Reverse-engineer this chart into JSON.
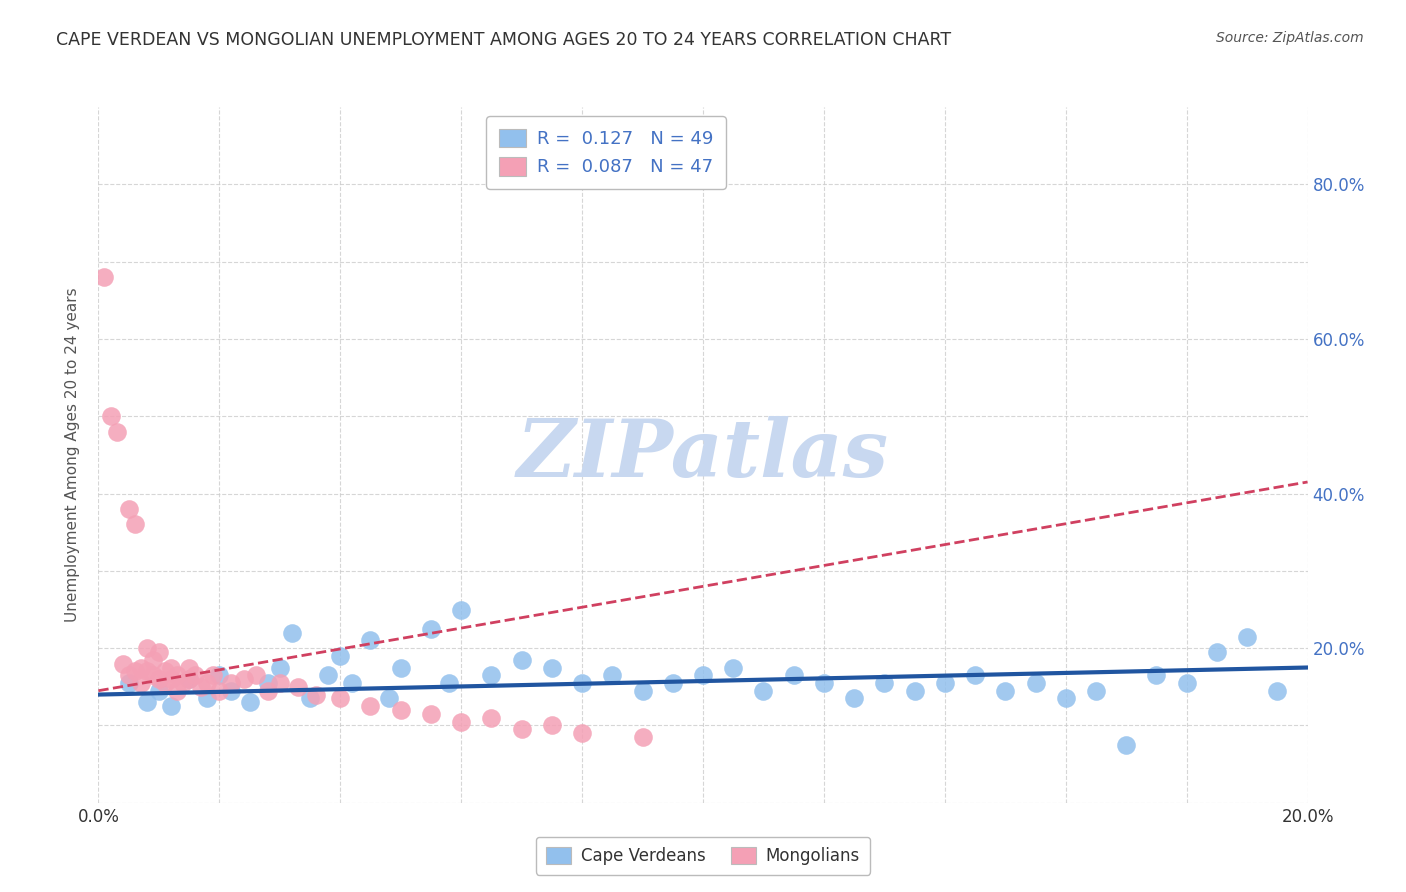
{
  "title": "CAPE VERDEAN VS MONGOLIAN UNEMPLOYMENT AMONG AGES 20 TO 24 YEARS CORRELATION CHART",
  "source": "Source: ZipAtlas.com",
  "ylabel": "Unemployment Among Ages 20 to 24 years",
  "xlim": [
    0.0,
    0.2
  ],
  "ylim": [
    0.0,
    0.9
  ],
  "xticks": [
    0.0,
    0.02,
    0.04,
    0.06,
    0.08,
    0.1,
    0.12,
    0.14,
    0.16,
    0.18,
    0.2
  ],
  "xtick_labels": [
    "0.0%",
    "",
    "",
    "",
    "",
    "",
    "",
    "",
    "",
    "",
    "20.0%"
  ],
  "yticks": [
    0.0,
    0.1,
    0.2,
    0.3,
    0.4,
    0.5,
    0.6,
    0.7,
    0.8
  ],
  "ytick_labels_right": [
    "",
    "",
    "20.0%",
    "",
    "40.0%",
    "",
    "60.0%",
    "",
    "80.0%"
  ],
  "legend_r_blue": "R =  0.127",
  "legend_n_blue": "N = 49",
  "legend_r_pink": "R =  0.087",
  "legend_n_pink": "N = 47",
  "blue_color": "#92C0ED",
  "pink_color": "#F4A0B5",
  "trend_blue": "#2055A0",
  "trend_pink": "#D04060",
  "watermark": "ZIPatlas",
  "watermark_color": "#C8D8F0",
  "background_color": "#FFFFFF",
  "blue_scatter_x": [
    0.005,
    0.008,
    0.01,
    0.012,
    0.015,
    0.018,
    0.02,
    0.022,
    0.025,
    0.028,
    0.03,
    0.032,
    0.035,
    0.038,
    0.04,
    0.042,
    0.045,
    0.048,
    0.05,
    0.055,
    0.058,
    0.06,
    0.065,
    0.07,
    0.075,
    0.08,
    0.085,
    0.09,
    0.095,
    0.1,
    0.105,
    0.11,
    0.115,
    0.12,
    0.125,
    0.13,
    0.135,
    0.14,
    0.145,
    0.15,
    0.155,
    0.16,
    0.165,
    0.17,
    0.175,
    0.18,
    0.185,
    0.19,
    0.195
  ],
  "blue_scatter_y": [
    0.155,
    0.13,
    0.145,
    0.125,
    0.16,
    0.135,
    0.165,
    0.145,
    0.13,
    0.155,
    0.175,
    0.22,
    0.135,
    0.165,
    0.19,
    0.155,
    0.21,
    0.135,
    0.175,
    0.225,
    0.155,
    0.25,
    0.165,
    0.185,
    0.175,
    0.155,
    0.165,
    0.145,
    0.155,
    0.165,
    0.175,
    0.145,
    0.165,
    0.155,
    0.135,
    0.155,
    0.145,
    0.155,
    0.165,
    0.145,
    0.155,
    0.135,
    0.145,
    0.075,
    0.165,
    0.155,
    0.195,
    0.215,
    0.145
  ],
  "pink_scatter_x": [
    0.001,
    0.002,
    0.003,
    0.004,
    0.005,
    0.005,
    0.006,
    0.006,
    0.007,
    0.007,
    0.008,
    0.008,
    0.009,
    0.009,
    0.01,
    0.01,
    0.011,
    0.011,
    0.012,
    0.012,
    0.013,
    0.013,
    0.014,
    0.015,
    0.015,
    0.016,
    0.017,
    0.018,
    0.019,
    0.02,
    0.022,
    0.024,
    0.026,
    0.028,
    0.03,
    0.033,
    0.036,
    0.04,
    0.045,
    0.05,
    0.055,
    0.06,
    0.065,
    0.07,
    0.075,
    0.08,
    0.09
  ],
  "pink_scatter_y": [
    0.68,
    0.5,
    0.48,
    0.18,
    0.165,
    0.38,
    0.17,
    0.36,
    0.175,
    0.155,
    0.17,
    0.2,
    0.165,
    0.185,
    0.16,
    0.195,
    0.155,
    0.17,
    0.16,
    0.175,
    0.165,
    0.145,
    0.155,
    0.16,
    0.175,
    0.165,
    0.15,
    0.155,
    0.165,
    0.145,
    0.155,
    0.16,
    0.165,
    0.145,
    0.155,
    0.15,
    0.14,
    0.135,
    0.125,
    0.12,
    0.115,
    0.105,
    0.11,
    0.095,
    0.1,
    0.09,
    0.085
  ],
  "blue_trend_x": [
    0.0,
    0.2
  ],
  "blue_trend_y": [
    0.14,
    0.175
  ],
  "pink_trend_x": [
    0.0,
    0.2
  ],
  "pink_trend_y": [
    0.145,
    0.415
  ]
}
